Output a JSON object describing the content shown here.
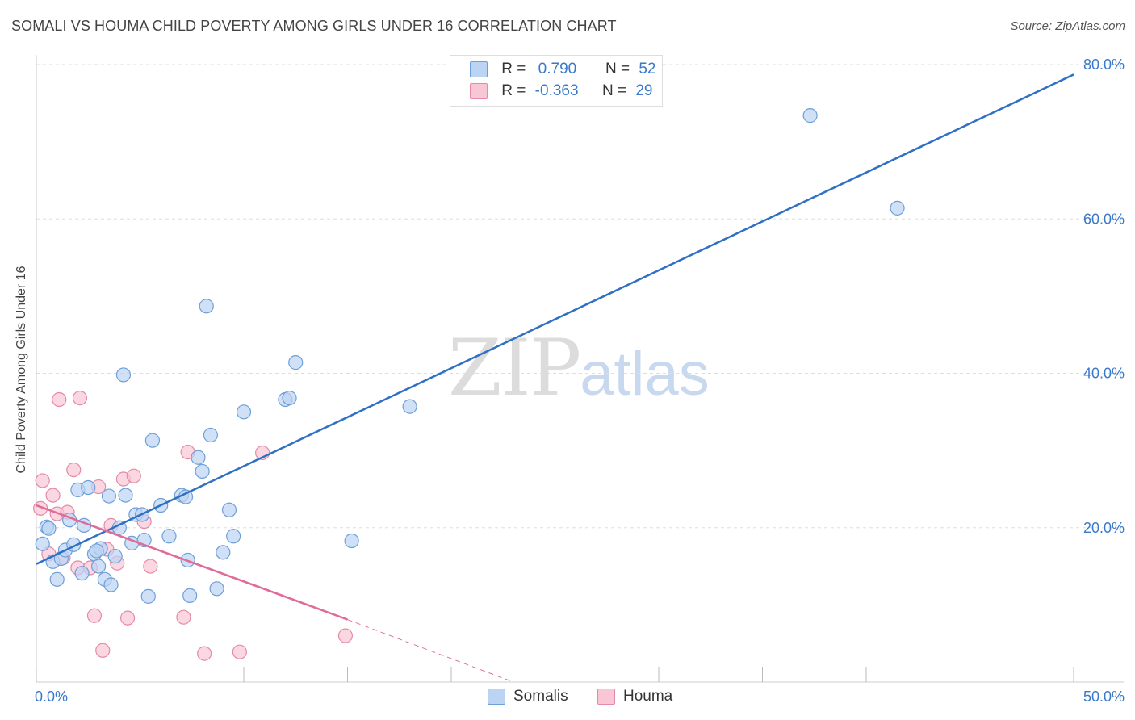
{
  "title": "SOMALI VS HOUMA CHILD POVERTY AMONG GIRLS UNDER 16 CORRELATION CHART",
  "source": "Source: ZipAtlas.com",
  "watermark": {
    "zip": "ZIP",
    "atlas": "atlas"
  },
  "colors": {
    "somali_fill": "#bcd4f4",
    "somali_stroke": "#6e9fd8",
    "somali_line": "#2f6fc4",
    "houma_fill": "#f9c6d6",
    "houma_stroke": "#e48aa8",
    "houma_line": "#e06a98",
    "axis_text": "#3a78c9",
    "grid": "#dddddd"
  },
  "legend": {
    "rows": [
      {
        "r_label": "R =",
        "r_value": "0.790",
        "n_label": "N =",
        "n_value": "52"
      },
      {
        "r_label": "R =",
        "r_value": "-0.363",
        "n_label": "N =",
        "n_value": "29"
      }
    ]
  },
  "bottom_legend": {
    "somali": "Somalis",
    "houma": "Houma"
  },
  "chart_data": {
    "type": "scatter",
    "title": "SOMALI VS HOUMA CHILD POVERTY AMONG GIRLS UNDER 16 CORRELATION CHART",
    "xlabel": "",
    "ylabel": "Child Poverty Among Girls Under 16",
    "xlim": [
      0,
      50
    ],
    "ylim": [
      0,
      80
    ],
    "x_tick_labels": [
      "0.0%",
      "50.0%"
    ],
    "y_ticks": [
      20,
      40,
      60,
      80
    ],
    "y_tick_labels": [
      "20.0%",
      "40.0%",
      "60.0%",
      "80.0%"
    ],
    "grid": true,
    "legend_position": "top-center",
    "series": [
      {
        "name": "Somalis",
        "r": 0.79,
        "n": 52,
        "trend": {
          "x0": 0,
          "y0": 15.3,
          "x1": 50,
          "y1": 78.7
        },
        "points": [
          [
            0.3,
            17.9
          ],
          [
            0.5,
            20.1
          ],
          [
            0.8,
            15.6
          ],
          [
            1.0,
            13.3
          ],
          [
            1.2,
            16.0
          ],
          [
            1.4,
            17.1
          ],
          [
            1.6,
            21.0
          ],
          [
            1.8,
            17.8
          ],
          [
            2.0,
            24.9
          ],
          [
            2.2,
            14.1
          ],
          [
            2.3,
            20.3
          ],
          [
            2.5,
            25.2
          ],
          [
            2.8,
            16.6
          ],
          [
            3.0,
            15.0
          ],
          [
            3.1,
            17.3
          ],
          [
            3.3,
            13.3
          ],
          [
            3.5,
            24.1
          ],
          [
            3.6,
            12.6
          ],
          [
            3.8,
            16.3
          ],
          [
            4.0,
            20.0
          ],
          [
            4.2,
            39.8
          ],
          [
            4.3,
            24.2
          ],
          [
            4.6,
            18.0
          ],
          [
            4.8,
            21.7
          ],
          [
            5.1,
            21.7
          ],
          [
            5.2,
            18.4
          ],
          [
            5.4,
            11.1
          ],
          [
            5.6,
            31.3
          ],
          [
            6.0,
            22.9
          ],
          [
            6.4,
            18.9
          ],
          [
            7.0,
            24.2
          ],
          [
            7.2,
            24.0
          ],
          [
            7.3,
            15.8
          ],
          [
            7.4,
            11.2
          ],
          [
            7.8,
            29.1
          ],
          [
            8.0,
            27.3
          ],
          [
            8.2,
            48.7
          ],
          [
            8.4,
            32.0
          ],
          [
            8.7,
            12.1
          ],
          [
            9.0,
            16.8
          ],
          [
            9.3,
            22.3
          ],
          [
            9.5,
            18.9
          ],
          [
            10.0,
            35.0
          ],
          [
            12.0,
            36.6
          ],
          [
            12.2,
            36.8
          ],
          [
            12.5,
            41.4
          ],
          [
            15.2,
            18.3
          ],
          [
            18.0,
            35.7
          ],
          [
            37.3,
            73.4
          ],
          [
            41.5,
            61.4
          ],
          [
            0.6,
            19.9
          ],
          [
            2.9,
            17.0
          ]
        ]
      },
      {
        "name": "Houma",
        "r": -0.363,
        "n": 29,
        "trend": {
          "x0": 0,
          "y0": 22.9,
          "x1": 15,
          "y1": 8.1
        },
        "trend_dashed": {
          "x0": 15,
          "y0": 8.1,
          "x1": 23,
          "y1": 0
        },
        "points": [
          [
            0.2,
            22.5
          ],
          [
            0.3,
            26.1
          ],
          [
            0.6,
            16.6
          ],
          [
            0.8,
            24.2
          ],
          [
            1.0,
            21.8
          ],
          [
            1.1,
            36.6
          ],
          [
            1.3,
            16.1
          ],
          [
            1.5,
            22.0
          ],
          [
            1.8,
            27.5
          ],
          [
            2.0,
            14.8
          ],
          [
            2.1,
            36.8
          ],
          [
            2.6,
            14.8
          ],
          [
            2.8,
            8.6
          ],
          [
            3.0,
            25.3
          ],
          [
            3.2,
            4.1
          ],
          [
            3.4,
            17.2
          ],
          [
            3.6,
            20.3
          ],
          [
            3.9,
            15.4
          ],
          [
            4.2,
            26.3
          ],
          [
            4.4,
            8.3
          ],
          [
            4.7,
            26.7
          ],
          [
            5.2,
            20.8
          ],
          [
            5.5,
            15.0
          ],
          [
            7.1,
            8.4
          ],
          [
            7.3,
            29.8
          ],
          [
            8.1,
            3.7
          ],
          [
            9.8,
            3.9
          ],
          [
            10.9,
            29.7
          ],
          [
            14.9,
            6.0
          ]
        ]
      }
    ]
  }
}
